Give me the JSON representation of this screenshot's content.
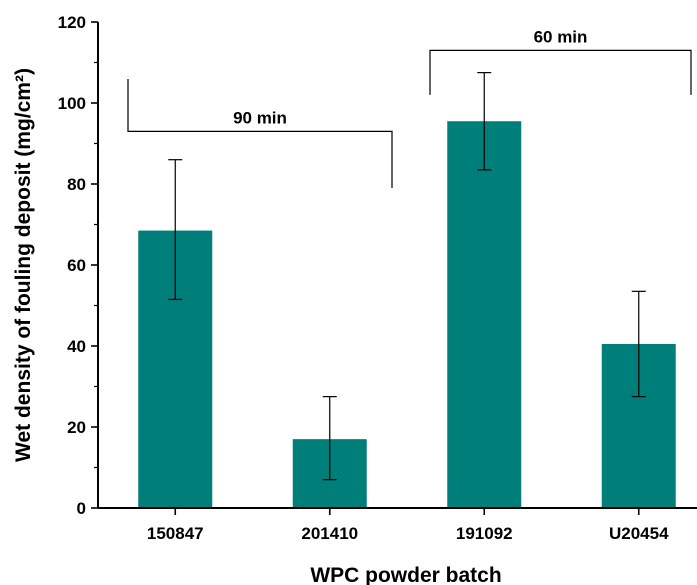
{
  "chart_data": {
    "type": "bar",
    "categories": [
      "150847",
      "201410",
      "191092",
      "U20454"
    ],
    "values": [
      68.5,
      17.0,
      95.5,
      40.5
    ],
    "error_low": [
      51.5,
      7.0,
      83.5,
      27.5
    ],
    "error_high": [
      86.0,
      27.5,
      107.5,
      53.5
    ],
    "xlabel": "WPC powder batch",
    "ylabel": "Wet density of fouling deposit (mg/cm²)",
    "ylim": [
      0,
      120
    ],
    "yticks": [
      "0",
      "20",
      "40",
      "60",
      "80",
      "100",
      "120"
    ],
    "bar_color": "#007f7a",
    "grid": false,
    "brackets": [
      {
        "label": "90 min",
        "from_category": 0,
        "to_category": 1,
        "level": 93
      },
      {
        "label": "60 min",
        "from_category": 2,
        "to_category": 3,
        "level": 113
      }
    ]
  }
}
